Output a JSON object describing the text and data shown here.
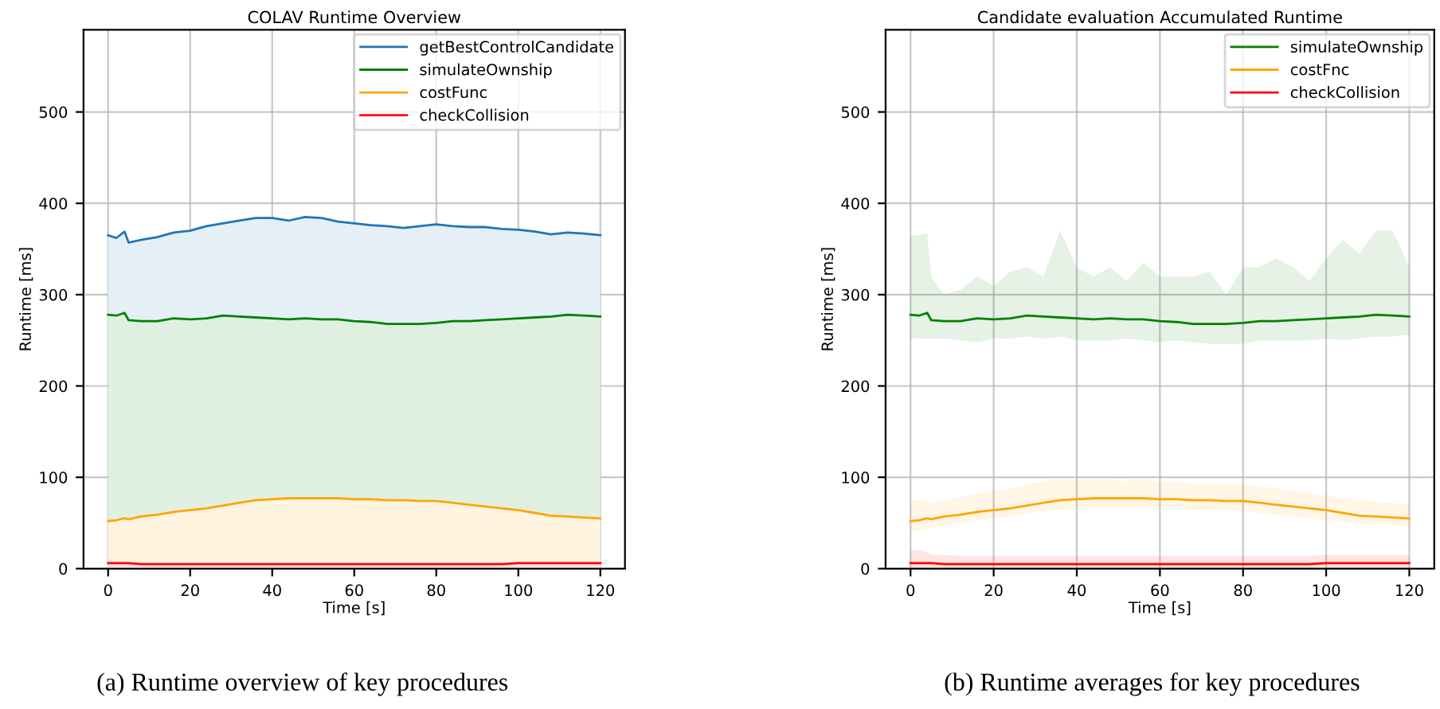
{
  "chart_data": [
    {
      "type": "area",
      "title": "COLAV Runtime Overview",
      "xlabel": "Time [s]",
      "ylabel": "Runtime [ms]",
      "x": [
        0,
        2,
        4,
        5,
        8,
        12,
        16,
        20,
        24,
        28,
        32,
        36,
        40,
        44,
        48,
        52,
        56,
        60,
        64,
        68,
        72,
        76,
        80,
        84,
        88,
        92,
        96,
        100,
        104,
        108,
        112,
        116,
        120
      ],
      "series": [
        {
          "name": "getBestControlCandidate",
          "color": "#1f77b4",
          "values": [
            365,
            362,
            369,
            357,
            360,
            363,
            368,
            370,
            375,
            378,
            381,
            384,
            384,
            381,
            385,
            384,
            380,
            378,
            376,
            375,
            373,
            375,
            377,
            375,
            374,
            374,
            372,
            371,
            369,
            366,
            368,
            367,
            365
          ]
        },
        {
          "name": "simulateOwnship",
          "color": "#008000",
          "values": [
            278,
            277,
            280,
            272,
            271,
            271,
            274,
            273,
            274,
            277,
            276,
            275,
            274,
            273,
            274,
            273,
            273,
            271,
            270,
            268,
            268,
            268,
            269,
            271,
            271,
            272,
            273,
            274,
            275,
            276,
            278,
            277,
            276
          ]
        },
        {
          "name": "costFunc",
          "color": "#ffa500",
          "values": [
            52,
            53,
            55,
            54,
            57,
            59,
            62,
            64,
            66,
            69,
            72,
            75,
            76,
            77,
            77,
            77,
            77,
            76,
            76,
            75,
            75,
            74,
            74,
            72,
            70,
            68,
            66,
            64,
            61,
            58,
            57,
            56,
            55
          ]
        },
        {
          "name": "checkCollision",
          "color": "#ff0000",
          "values": [
            6,
            6,
            6,
            6,
            5,
            5,
            5,
            5,
            5,
            5,
            5,
            5,
            5,
            5,
            5,
            5,
            5,
            5,
            5,
            5,
            5,
            5,
            5,
            5,
            5,
            5,
            5,
            6,
            6,
            6,
            6,
            6,
            6
          ]
        }
      ],
      "xlim": [
        -6,
        126
      ],
      "ylim": [
        0,
        590
      ],
      "xticks": [
        0,
        20,
        40,
        60,
        80,
        100,
        120
      ],
      "yticks": [
        0,
        100,
        200,
        300,
        400,
        500
      ],
      "grid": true,
      "legend": "top right",
      "annotations": [
        "(a) Runtime overview of key procedures"
      ]
    },
    {
      "type": "line",
      "title": "Candidate evaluation Accumulated Runtime",
      "xlabel": "Time [s]",
      "ylabel": "Runtime [ms]",
      "x": [
        0,
        2,
        4,
        5,
        8,
        12,
        16,
        20,
        24,
        28,
        32,
        36,
        40,
        44,
        48,
        52,
        56,
        60,
        64,
        68,
        72,
        76,
        80,
        84,
        88,
        92,
        96,
        100,
        104,
        108,
        112,
        116,
        120
      ],
      "series": [
        {
          "name": "simulateOwnship",
          "color": "#008000",
          "values": [
            278,
            277,
            280,
            272,
            271,
            271,
            274,
            273,
            274,
            277,
            276,
            275,
            274,
            273,
            274,
            273,
            273,
            271,
            270,
            268,
            268,
            268,
            269,
            271,
            271,
            272,
            273,
            274,
            275,
            276,
            278,
            277,
            276
          ],
          "lower": [
            252,
            252,
            252,
            252,
            252,
            250,
            248,
            252,
            252,
            254,
            252,
            254,
            250,
            250,
            250,
            252,
            250,
            248,
            250,
            248,
            246,
            246,
            246,
            250,
            250,
            250,
            250,
            252,
            250,
            252,
            254,
            254,
            256
          ],
          "upper": [
            365,
            365,
            367,
            320,
            300,
            305,
            320,
            310,
            325,
            330,
            320,
            370,
            330,
            320,
            330,
            315,
            335,
            320,
            320,
            320,
            325,
            300,
            330,
            330,
            340,
            330,
            315,
            340,
            360,
            345,
            370,
            370,
            330
          ]
        },
        {
          "name": "costFnc",
          "color": "#ffa500",
          "values": [
            52,
            53,
            55,
            54,
            57,
            59,
            62,
            64,
            66,
            69,
            72,
            75,
            76,
            77,
            77,
            77,
            77,
            76,
            76,
            75,
            75,
            74,
            74,
            72,
            70,
            68,
            66,
            64,
            61,
            58,
            57,
            56,
            55
          ],
          "lower": [
            40,
            42,
            44,
            45,
            47,
            50,
            53,
            55,
            57,
            60,
            63,
            65,
            66,
            67,
            67,
            67,
            67,
            66,
            66,
            65,
            65,
            64,
            63,
            61,
            59,
            57,
            55,
            53,
            51,
            49,
            48,
            48,
            47
          ],
          "upper": [
            75,
            75,
            74,
            72,
            75,
            78,
            82,
            85,
            88,
            92,
            95,
            98,
            98,
            97,
            97,
            96,
            98,
            95,
            95,
            93,
            92,
            92,
            92,
            90,
            88,
            85,
            83,
            80,
            78,
            75,
            73,
            72,
            70
          ]
        },
        {
          "name": "checkCollision",
          "color": "#ff0000",
          "values": [
            6,
            6,
            6,
            6,
            5,
            5,
            5,
            5,
            5,
            5,
            5,
            5,
            5,
            5,
            5,
            5,
            5,
            5,
            5,
            5,
            5,
            5,
            5,
            5,
            5,
            5,
            5,
            6,
            6,
            6,
            6,
            6,
            6
          ],
          "lower": [
            0,
            0,
            0,
            0,
            0,
            0,
            0,
            0,
            0,
            0,
            0,
            0,
            0,
            0,
            0,
            0,
            0,
            0,
            0,
            0,
            0,
            0,
            0,
            0,
            0,
            0,
            0,
            0,
            0,
            0,
            0,
            0,
            0
          ],
          "upper": [
            20,
            20,
            18,
            15,
            15,
            14,
            14,
            14,
            14,
            14,
            14,
            14,
            14,
            14,
            14,
            14,
            14,
            14,
            14,
            14,
            14,
            14,
            14,
            14,
            14,
            14,
            14,
            15,
            15,
            15,
            15,
            15,
            15
          ]
        }
      ],
      "xlim": [
        -6,
        126
      ],
      "ylim": [
        0,
        590
      ],
      "xticks": [
        0,
        20,
        40,
        60,
        80,
        100,
        120
      ],
      "yticks": [
        0,
        100,
        200,
        300,
        400,
        500
      ],
      "grid": true,
      "legend": "top right",
      "annotations": [
        "(b) Runtime averages for key procedures"
      ]
    }
  ]
}
